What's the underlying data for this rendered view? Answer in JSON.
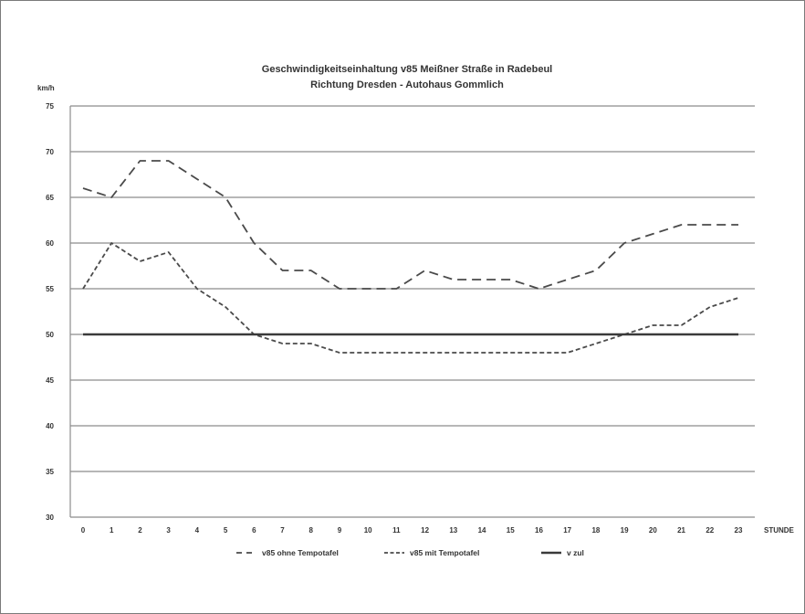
{
  "chart_data": {
    "type": "line",
    "title": "Geschwindigkeitseinhaltung v85 Meißner Straße in Radebeul",
    "subtitle": "Richtung Dresden - Autohaus Gommlich",
    "ylabel": "km/h",
    "xlabel": "STUNDE",
    "ylim": [
      30,
      75
    ],
    "yticks": [
      30,
      35,
      40,
      45,
      50,
      55,
      60,
      65,
      70,
      75
    ],
    "grid": true,
    "legend_position": "bottom",
    "x": [
      "0",
      "1",
      "2",
      "3",
      "4",
      "5",
      "6",
      "7",
      "8",
      "9",
      "10",
      "11",
      "12",
      "13",
      "14",
      "15",
      "16",
      "17",
      "18",
      "19",
      "20",
      "21",
      "22",
      "23"
    ],
    "series": [
      {
        "name": "v85 ohne Tempotafel",
        "style": "dashed",
        "color": "#4a4a4a",
        "values": [
          66,
          65,
          69,
          69,
          67,
          65,
          60,
          57,
          57,
          55,
          55,
          55,
          57,
          56,
          56,
          56,
          55,
          56,
          57,
          60,
          61,
          62,
          62,
          62
        ]
      },
      {
        "name": "v85 mit Tempotafel",
        "style": "dotted",
        "color": "#4a4a4a",
        "values": [
          55,
          60,
          58,
          59,
          55,
          53,
          50,
          49,
          49,
          48,
          48,
          48,
          48,
          48,
          48,
          48,
          48,
          48,
          49,
          50,
          51,
          51,
          53,
          54
        ]
      },
      {
        "name": "v zul",
        "style": "solid",
        "color": "#3a3a3a",
        "values": [
          50,
          50,
          50,
          50,
          50,
          50,
          50,
          50,
          50,
          50,
          50,
          50,
          50,
          50,
          50,
          50,
          50,
          50,
          50,
          50,
          50,
          50,
          50,
          50
        ]
      }
    ]
  }
}
